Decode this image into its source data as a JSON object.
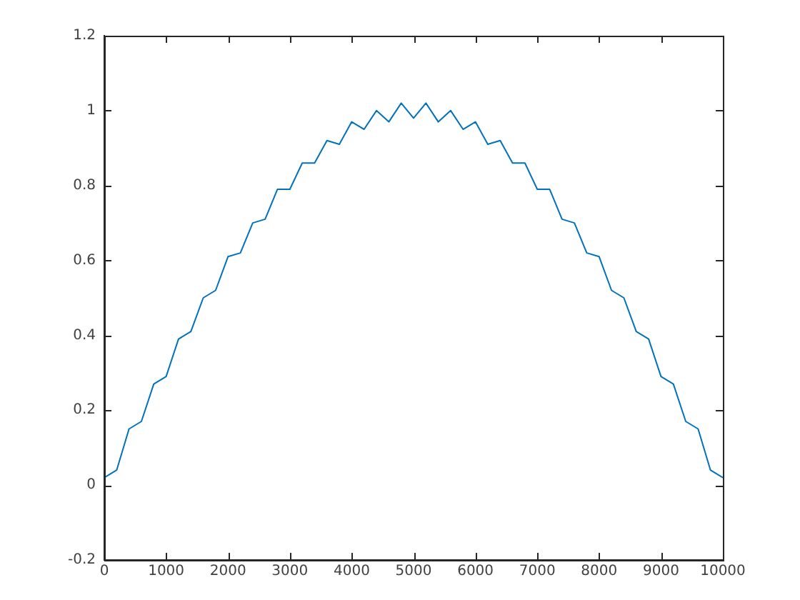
{
  "chart_data": {
    "type": "line",
    "x": [
      0,
      200,
      400,
      600,
      800,
      1000,
      1200,
      1400,
      1600,
      1800,
      2000,
      2200,
      2400,
      2600,
      2800,
      3000,
      3200,
      3400,
      3600,
      3800,
      4000,
      4200,
      4400,
      4600,
      4800,
      5000,
      5200,
      5400,
      5600,
      5800,
      6000,
      6200,
      6400,
      6600,
      6800,
      7000,
      7200,
      7400,
      7600,
      7800,
      8000,
      8200,
      8400,
      8600,
      8800,
      9000,
      9200,
      9400,
      9600,
      9800,
      10000
    ],
    "series": [
      {
        "color": "#0072bd",
        "values": [
          0.02,
          0.04,
          0.15,
          0.17,
          0.27,
          0.29,
          0.39,
          0.41,
          0.5,
          0.52,
          0.61,
          0.62,
          0.7,
          0.71,
          0.79,
          0.79,
          0.86,
          0.86,
          0.92,
          0.91,
          0.97,
          0.95,
          1.0,
          0.97,
          1.02,
          0.98,
          1.02,
          0.97,
          1.0,
          0.95,
          0.97,
          0.91,
          0.92,
          0.86,
          0.86,
          0.79,
          0.79,
          0.71,
          0.7,
          0.62,
          0.61,
          0.52,
          0.5,
          0.41,
          0.39,
          0.29,
          0.27,
          0.17,
          0.15,
          0.04,
          0.02
        ]
      }
    ],
    "xlim": [
      0,
      10000
    ],
    "xticks": [
      0,
      1000,
      2000,
      3000,
      4000,
      5000,
      6000,
      7000,
      8000,
      9000,
      10000
    ],
    "ylim": [
      -0.2,
      1.2
    ],
    "yticks": [
      -0.2,
      0,
      0.2,
      0.4,
      0.6,
      0.8,
      1,
      1.2
    ],
    "grid": false,
    "legend": false,
    "marker": "none",
    "line_style": "solid"
  }
}
